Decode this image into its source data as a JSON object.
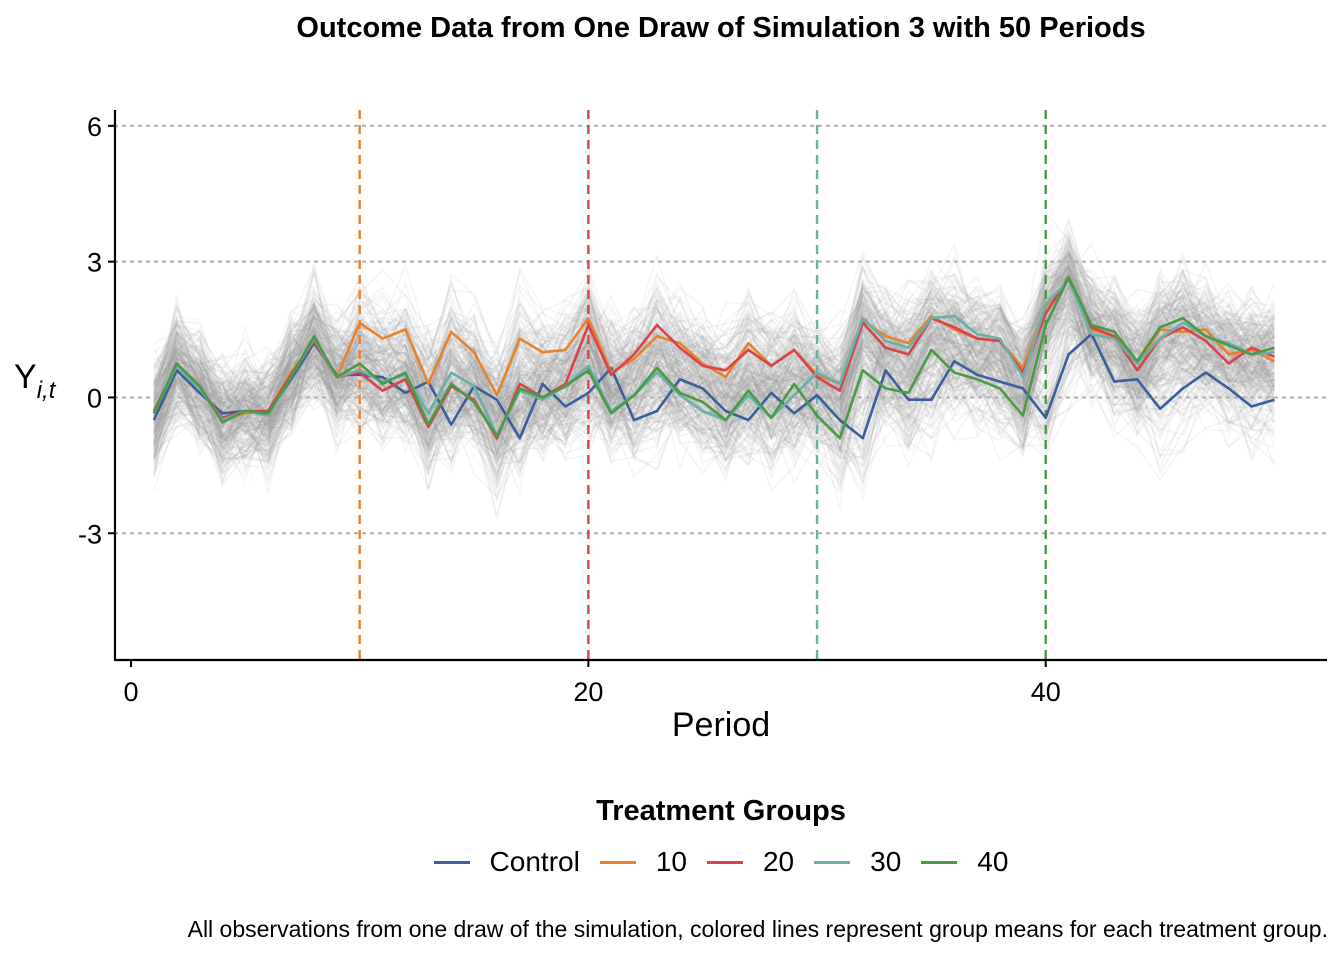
{
  "chart_data": {
    "type": "line",
    "title": "Outcome Data from One Draw of Simulation 3 with 50 Periods",
    "xlabel": "Period",
    "ylabel_main": "Y",
    "ylabel_sub": "i,t",
    "xlim": [
      -0.7,
      52.3
    ],
    "ylim": [
      -5.8,
      6.35
    ],
    "xticks": [
      0,
      20,
      40
    ],
    "xtick_labels": [
      "0",
      "20",
      "40"
    ],
    "yticks": [
      -3,
      0,
      3,
      6
    ],
    "ytick_labels": [
      "-3",
      "0",
      "3",
      "6"
    ],
    "grid": "horizontal dotted",
    "legend_title": "Treatment Groups",
    "legend_position": "bottom",
    "caption": "All observations from one draw of the simulation, colored lines represent group means for each treatment group.",
    "x": [
      1,
      2,
      3,
      4,
      5,
      6,
      7,
      8,
      9,
      10,
      11,
      12,
      13,
      14,
      15,
      16,
      17,
      18,
      19,
      20,
      21,
      22,
      23,
      24,
      25,
      26,
      27,
      28,
      29,
      30,
      31,
      32,
      33,
      34,
      35,
      36,
      37,
      38,
      39,
      40,
      41,
      42,
      43,
      44,
      45,
      46,
      47,
      48,
      49,
      50
    ],
    "vlines": [
      {
        "x": 10,
        "color": "#E8822B"
      },
      {
        "x": 20,
        "color": "#D9434A"
      },
      {
        "x": 30,
        "color": "#69B0A8"
      },
      {
        "x": 40,
        "color": "#4A9A46"
      }
    ],
    "series": [
      {
        "name": "Control",
        "color": "#3B5F9C",
        "values": [
          -0.5,
          0.6,
          0.1,
          -0.35,
          -0.3,
          -0.35,
          0.4,
          1.2,
          0.5,
          0.5,
          0.45,
          0.1,
          0.35,
          -0.6,
          0.25,
          -0.05,
          -0.9,
          0.3,
          -0.2,
          0.1,
          0.65,
          -0.5,
          -0.3,
          0.4,
          0.2,
          -0.3,
          -0.5,
          0.1,
          -0.35,
          0.05,
          -0.5,
          -0.9,
          0.6,
          -0.05,
          -0.05,
          0.8,
          0.5,
          0.35,
          0.2,
          -0.45,
          0.95,
          1.4,
          0.35,
          0.4,
          -0.25,
          0.2,
          0.55,
          0.2,
          -0.2,
          -0.05
        ]
      },
      {
        "name": "10",
        "color": "#E8822B",
        "values": [
          -0.35,
          0.7,
          0.2,
          -0.5,
          -0.35,
          -0.3,
          0.55,
          1.25,
          0.45,
          1.65,
          1.3,
          1.5,
          0.3,
          1.45,
          1.0,
          0.05,
          1.3,
          1.0,
          1.05,
          1.75,
          0.55,
          0.85,
          1.35,
          1.2,
          0.75,
          0.45,
          1.2,
          0.7,
          1.05,
          0.5,
          0.3,
          1.7,
          1.35,
          1.2,
          1.8,
          1.5,
          1.3,
          1.25,
          0.65,
          2.0,
          2.6,
          1.5,
          1.35,
          0.75,
          1.5,
          1.45,
          1.5,
          0.95,
          1.05,
          0.8
        ]
      },
      {
        "name": "20",
        "color": "#D9434A",
        "values": [
          -0.3,
          0.7,
          0.2,
          -0.45,
          -0.3,
          -0.3,
          0.5,
          1.25,
          0.45,
          0.55,
          0.15,
          0.4,
          -0.65,
          0.25,
          -0.05,
          -0.9,
          0.3,
          0.0,
          0.3,
          1.6,
          0.5,
          0.95,
          1.6,
          1.1,
          0.7,
          0.6,
          1.05,
          0.7,
          1.05,
          0.45,
          0.15,
          1.65,
          1.1,
          0.95,
          1.75,
          1.55,
          1.3,
          1.25,
          0.55,
          1.85,
          2.65,
          1.55,
          1.35,
          0.6,
          1.3,
          1.55,
          1.25,
          0.75,
          1.1,
          0.9
        ]
      },
      {
        "name": "30",
        "color": "#69B0A8",
        "values": [
          -0.35,
          0.7,
          0.2,
          -0.5,
          -0.3,
          -0.4,
          0.45,
          1.3,
          0.45,
          0.6,
          0.35,
          0.5,
          -0.35,
          0.55,
          0.25,
          -0.85,
          0.15,
          -0.05,
          0.25,
          0.7,
          -0.3,
          0.05,
          0.55,
          0.05,
          -0.3,
          -0.5,
          0.05,
          -0.45,
          0.05,
          0.55,
          0.3,
          1.75,
          1.25,
          1.1,
          1.75,
          1.8,
          1.4,
          1.3,
          0.45,
          2.05,
          2.6,
          1.4,
          1.3,
          0.75,
          1.3,
          1.65,
          1.35,
          1.2,
          0.95,
          1.0
        ]
      },
      {
        "name": "40",
        "color": "#4A9A46",
        "values": [
          -0.35,
          0.75,
          0.25,
          -0.55,
          -0.3,
          -0.35,
          0.45,
          1.35,
          0.45,
          0.75,
          0.3,
          0.55,
          -0.6,
          0.3,
          -0.1,
          -0.85,
          0.2,
          0.0,
          0.25,
          0.6,
          -0.35,
          0.05,
          0.65,
          0.1,
          -0.1,
          -0.5,
          0.15,
          -0.45,
          0.3,
          -0.4,
          -0.9,
          0.6,
          0.2,
          0.1,
          1.05,
          0.55,
          0.4,
          0.2,
          -0.4,
          1.6,
          2.65,
          1.6,
          1.45,
          0.8,
          1.55,
          1.75,
          1.35,
          1.15,
          0.95,
          1.1
        ]
      }
    ]
  }
}
